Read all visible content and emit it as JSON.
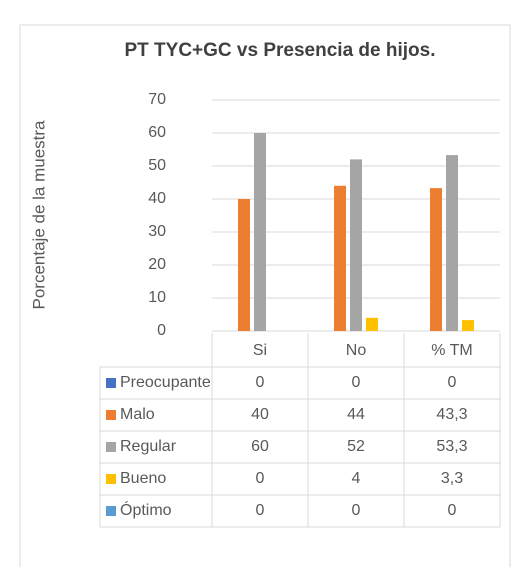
{
  "chart_data": {
    "type": "bar",
    "title": "PT TYC+GC vs Presencia de hijos.",
    "y_label": "Porcentaje de la muestra",
    "categories": [
      "Si",
      "No",
      "% TM"
    ],
    "series": [
      {
        "name": "Preocupante",
        "color": "#4472c4",
        "values": [
          0,
          0,
          0
        ],
        "value_labels": [
          "0",
          "0",
          "0"
        ]
      },
      {
        "name": "Malo",
        "color": "#ed7d31",
        "values": [
          40,
          44,
          43.3
        ],
        "value_labels": [
          "40",
          "44",
          "43,3"
        ]
      },
      {
        "name": "Regular",
        "color": "#a5a5a5",
        "values": [
          60,
          52,
          53.3
        ],
        "value_labels": [
          "60",
          "52",
          "53,3"
        ]
      },
      {
        "name": "Bueno",
        "color": "#ffc000",
        "values": [
          0,
          4,
          3.3
        ],
        "value_labels": [
          "0",
          "4",
          "3,3"
        ]
      },
      {
        "name": "Óptimo",
        "color": "#5b9bd5",
        "values": [
          0,
          0,
          0
        ],
        "value_labels": [
          "0",
          "0",
          "0"
        ]
      }
    ],
    "ylim": [
      0,
      70
    ],
    "yticks": [
      0,
      10,
      20,
      30,
      40,
      50,
      60,
      70
    ],
    "grid": true
  }
}
